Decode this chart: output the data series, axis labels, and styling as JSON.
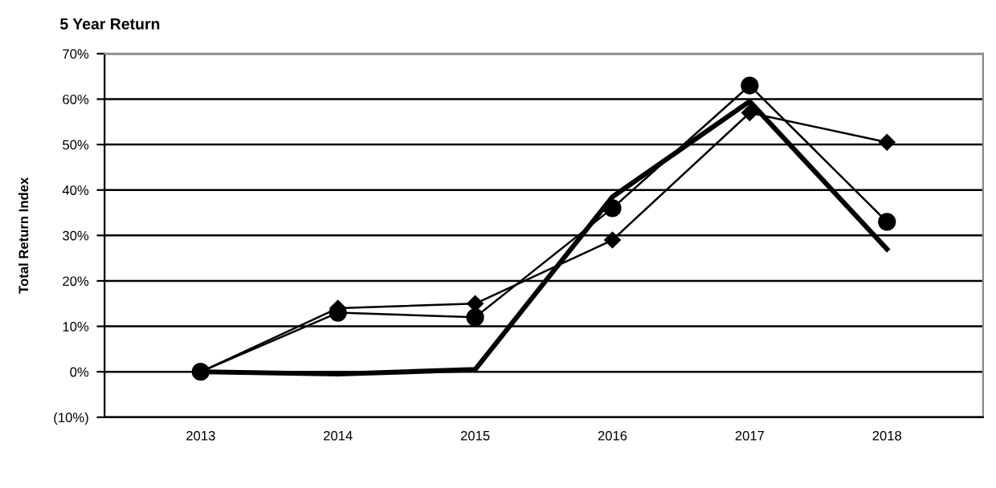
{
  "chart_data": {
    "type": "line",
    "title": "5 Year Return",
    "ylabel": "Total Return Index",
    "categories": [
      "2013",
      "2014",
      "2015",
      "2016",
      "2017",
      "2018"
    ],
    "series": [
      {
        "color": "#000000",
        "values": [
          0,
          -0.5,
          0.5,
          38.5,
          59.5,
          27
        ],
        "marker": "none"
      },
      {
        "color": "#000000",
        "values": [
          0,
          14,
          15,
          29,
          57,
          50.5
        ],
        "marker": "diamond"
      },
      {
        "color": "#000000",
        "values": [
          0,
          13,
          12,
          36,
          63,
          33
        ],
        "marker": "circle"
      }
    ],
    "ylim": [
      -10,
      70
    ],
    "yticks": [
      {
        "value": -10,
        "label": "(10%)"
      },
      {
        "value": 0,
        "label": "0%"
      },
      {
        "value": 10,
        "label": "10%"
      },
      {
        "value": 20,
        "label": "20%"
      },
      {
        "value": 30,
        "label": "30%"
      },
      {
        "value": 40,
        "label": "40%"
      },
      {
        "value": 50,
        "label": "50%"
      },
      {
        "value": 60,
        "label": "60%"
      },
      {
        "value": 70,
        "label": "70%"
      }
    ],
    "grid": "y"
  }
}
